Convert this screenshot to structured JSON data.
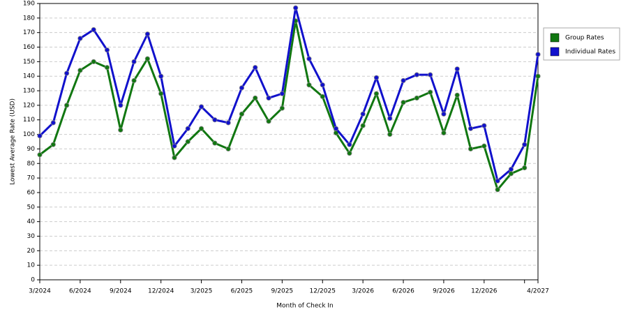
{
  "chart_data": {
    "type": "line",
    "x_label": "Month of Check In",
    "y_label": "Lowest Average Rate (USD)",
    "categories": [
      "3/2024",
      null,
      null,
      "6/2024",
      null,
      null,
      "9/2024",
      null,
      null,
      "12/2024",
      null,
      null,
      "3/2025",
      null,
      null,
      "6/2025",
      null,
      null,
      "9/2025",
      null,
      null,
      "12/2025",
      null,
      null,
      "3/2026",
      null,
      null,
      "6/2026",
      null,
      null,
      "9/2026",
      null,
      null,
      "12/2026",
      null,
      null,
      null,
      "4/2027"
    ],
    "series": [
      {
        "name": "Group Rates",
        "color": "#117711",
        "values": [
          86,
          93,
          120,
          144,
          150,
          146,
          103,
          137,
          152,
          128,
          84,
          95,
          104,
          94,
          90,
          114,
          125,
          109,
          118,
          178,
          134,
          126,
          101,
          87,
          106,
          128,
          100,
          122,
          125,
          129,
          101,
          127,
          90,
          92,
          62,
          73,
          77,
          140
        ]
      },
      {
        "name": "Individual Rates",
        "color": "#1111cc",
        "values": [
          99,
          108,
          142,
          166,
          172,
          158,
          120,
          150,
          169,
          140,
          92,
          104,
          119,
          110,
          108,
          132,
          146,
          125,
          128,
          187,
          152,
          134,
          104,
          93,
          114,
          139,
          111,
          137,
          141,
          141,
          114,
          145,
          104,
          106,
          68,
          76,
          93,
          155
        ]
      }
    ],
    "ylim": [
      0,
      190
    ],
    "yticks": [
      0,
      10,
      20,
      30,
      40,
      50,
      60,
      70,
      80,
      90,
      100,
      110,
      120,
      130,
      140,
      150,
      160,
      170,
      180,
      190
    ],
    "grid": true
  }
}
